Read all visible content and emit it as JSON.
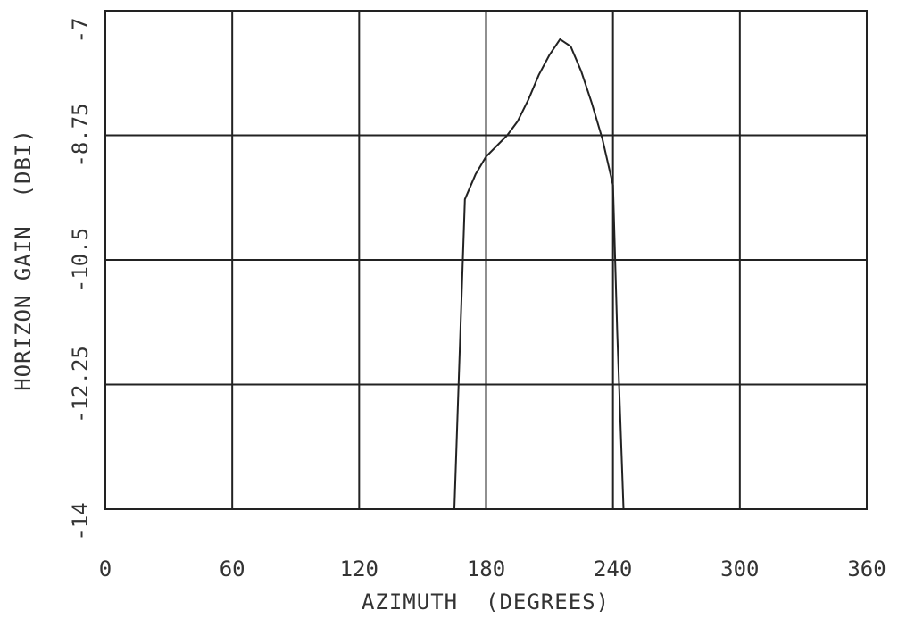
{
  "chart_data": {
    "type": "line",
    "title": "",
    "xlabel": "AZIMUTH  (DEGREES)",
    "ylabel": "HORIZON GAIN  (DBI)",
    "xlim": [
      0,
      360
    ],
    "ylim": [
      -14,
      -7
    ],
    "xticks": [
      0,
      60,
      120,
      180,
      240,
      300,
      360
    ],
    "xtick_labels": [
      "0",
      "60",
      "120",
      "180",
      "240",
      "300",
      "360"
    ],
    "yticks": [
      -14,
      -12.25,
      -10.5,
      -8.75,
      -7
    ],
    "ytick_labels": [
      "-14",
      "-12.25",
      "-10.5",
      "-8.75",
      "-7"
    ],
    "grid": true,
    "series": [
      {
        "x": [
          165,
          170,
          175,
          180,
          185,
          190,
          195,
          200,
          205,
          210,
          215,
          220,
          225,
          230,
          235,
          240,
          242,
          245
        ],
        "y": [
          -14.0,
          -9.65,
          -9.3,
          -9.05,
          -8.9,
          -8.75,
          -8.55,
          -8.25,
          -7.9,
          -7.62,
          -7.4,
          -7.5,
          -7.85,
          -8.3,
          -8.8,
          -9.45,
          -11.5,
          -14.0
        ]
      }
    ],
    "colors": {
      "line": "#222222",
      "text": "#333333",
      "background": "#ffffff"
    }
  }
}
